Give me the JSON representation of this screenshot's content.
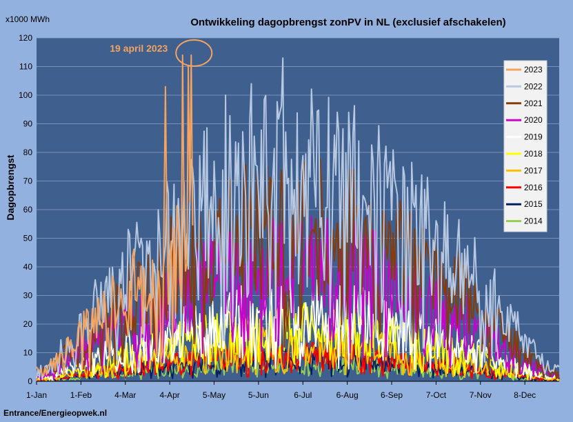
{
  "chart_data": {
    "type": "line",
    "title": "Ontwikkeling dagopbrengst zonPV in NL (exclusief afschakelen)",
    "unit_label": "x1000 MWh",
    "ylabel": "Dagopbrengst",
    "xlabel": "",
    "ylim": [
      0,
      120
    ],
    "ytick_step": 10,
    "xlim_days": [
      1,
      366
    ],
    "x_ticks": [
      {
        "label": "1-Jan",
        "day": 1
      },
      {
        "label": "1-Feb",
        "day": 32
      },
      {
        "label": "4-Mar",
        "day": 63
      },
      {
        "label": "4-Apr",
        "day": 94
      },
      {
        "label": "5-May",
        "day": 125
      },
      {
        "label": "5-Jun",
        "day": 156
      },
      {
        "label": "6-Jul",
        "day": 187
      },
      {
        "label": "6-Aug",
        "day": 218
      },
      {
        "label": "6-Sep",
        "day": 249
      },
      {
        "label": "7-Oct",
        "day": 280
      },
      {
        "label": "7-Nov",
        "day": 311
      },
      {
        "label": "8-Dec",
        "day": 342
      }
    ],
    "grid": true,
    "legend_position": "top-right",
    "annotation": {
      "text": "19 april 2023",
      "day": 109,
      "value": 114
    },
    "series": [
      {
        "name": "2014",
        "color": "#92d050",
        "peak": 9,
        "start": 1,
        "end": 366,
        "noise": 0.9,
        "seed": 14,
        "highlights": []
      },
      {
        "name": "2015",
        "color": "#002060",
        "peak": 12,
        "start": 1,
        "end": 366,
        "noise": 0.9,
        "seed": 15,
        "highlights": []
      },
      {
        "name": "2016",
        "color": "#ff0000",
        "peak": 14,
        "start": 1,
        "end": 366,
        "noise": 0.9,
        "seed": 16,
        "highlights": []
      },
      {
        "name": "2017",
        "color": "#ffc000",
        "peak": 20,
        "start": 1,
        "end": 366,
        "noise": 0.9,
        "seed": 17,
        "highlights": []
      },
      {
        "name": "2018",
        "color": "#ffff00",
        "peak": 28,
        "start": 1,
        "end": 366,
        "noise": 0.9,
        "seed": 18,
        "highlights": []
      },
      {
        "name": "2019",
        "color": "#ffffff",
        "peak": 36,
        "start": 1,
        "end": 366,
        "noise": 0.9,
        "seed": 19,
        "highlights": []
      },
      {
        "name": "2020",
        "color": "#cc00cc",
        "peak": 60,
        "start": 1,
        "end": 366,
        "noise": 0.85,
        "seed": 20,
        "highlights": []
      },
      {
        "name": "2021",
        "color": "#843c0c",
        "peak": 80,
        "start": 1,
        "end": 366,
        "noise": 0.85,
        "seed": 21,
        "highlights": []
      },
      {
        "name": "2022",
        "color": "#b7c9e2",
        "peak": 104,
        "start": 1,
        "end": 366,
        "noise": 0.8,
        "seed": 22,
        "highlights": [
          [
            173,
            113
          ],
          [
            133,
            100
          ],
          [
            151,
            104
          ]
        ]
      },
      {
        "name": "2023",
        "color": "#f4a460",
        "peak": 88,
        "start": 1,
        "end": 110,
        "noise": 0.85,
        "seed": 23,
        "highlights": [
          [
            91,
            103
          ],
          [
            103,
            114
          ],
          [
            109,
            114
          ],
          [
            107,
            110
          ]
        ]
      }
    ]
  },
  "footer": {
    "text": "Entrance/Energieopwek.nl"
  }
}
